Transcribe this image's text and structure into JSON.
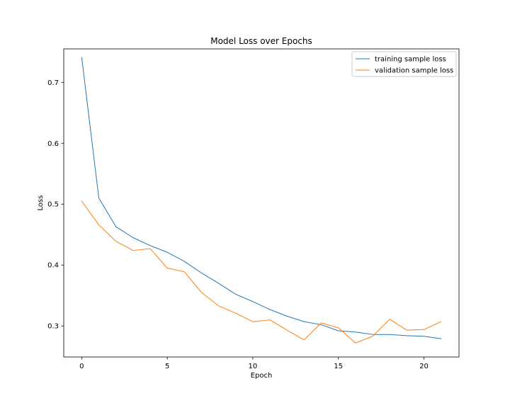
{
  "chart_data": {
    "type": "line",
    "title": "Model Loss over Epochs",
    "xlabel": "Epoch",
    "ylabel": "Loss",
    "xlim": [
      -1.05,
      22.05
    ],
    "ylim": [
      0.249,
      0.755
    ],
    "xticks": [
      0,
      5,
      10,
      15,
      20
    ],
    "yticks": [
      0.3,
      0.4,
      0.5,
      0.6,
      0.7
    ],
    "ytick_labels": [
      "0.3",
      "0.4",
      "0.5",
      "0.6",
      "0.7"
    ],
    "grid": false,
    "legend_position": "upper right",
    "x": [
      0,
      1,
      2,
      3,
      4,
      5,
      6,
      7,
      8,
      9,
      10,
      11,
      12,
      13,
      14,
      15,
      16,
      17,
      18,
      19,
      20,
      21
    ],
    "series": [
      {
        "name": "training sample loss",
        "color": "#1f77b4",
        "values": [
          0.741,
          0.51,
          0.463,
          0.445,
          0.432,
          0.421,
          0.406,
          0.387,
          0.37,
          0.352,
          0.34,
          0.327,
          0.316,
          0.307,
          0.302,
          0.292,
          0.29,
          0.286,
          0.286,
          0.284,
          0.283,
          0.279
        ]
      },
      {
        "name": "validation sample loss",
        "color": "#ff7f0e",
        "values": [
          0.505,
          0.466,
          0.439,
          0.424,
          0.427,
          0.395,
          0.389,
          0.355,
          0.333,
          0.321,
          0.307,
          0.31,
          0.293,
          0.277,
          0.305,
          0.297,
          0.272,
          0.283,
          0.311,
          0.293,
          0.294,
          0.307
        ]
      }
    ]
  }
}
